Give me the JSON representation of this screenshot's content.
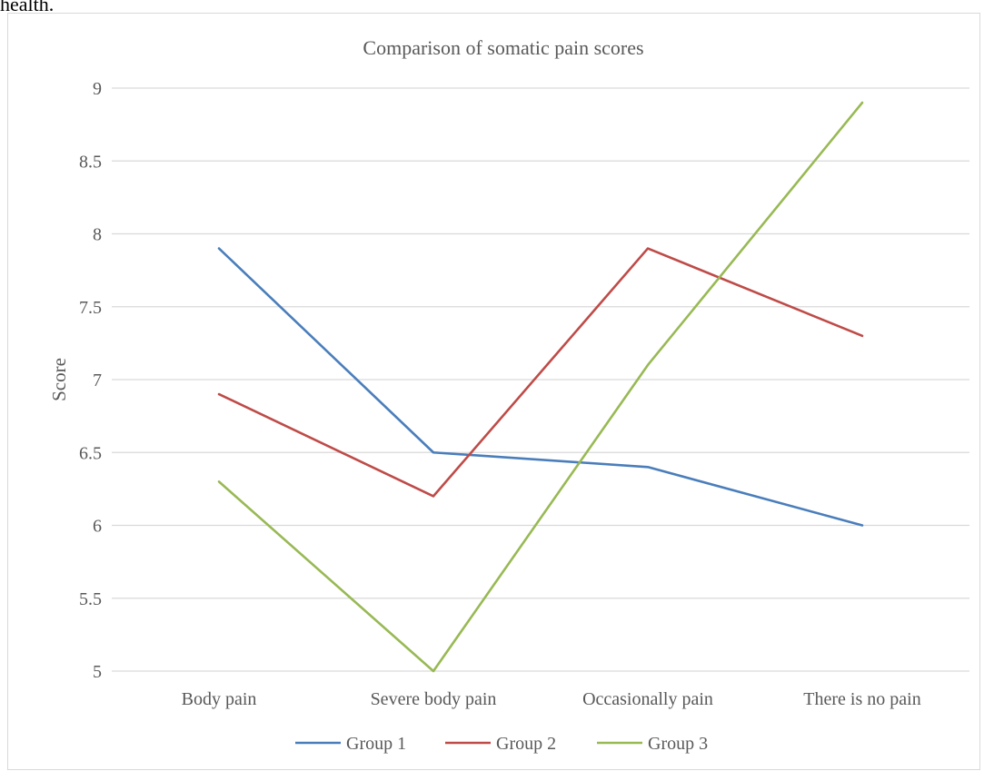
{
  "page": {
    "top_text": "health."
  },
  "chart_data": {
    "type": "line",
    "title": "Comparison of somatic pain scores",
    "xlabel": "",
    "ylabel": "Score",
    "categories": [
      "Body pain",
      "Severe body pain",
      "Occasionally pain",
      "There is no pain"
    ],
    "ylim": [
      5,
      9
    ],
    "yticks": [
      5,
      5.5,
      6,
      6.5,
      7,
      7.5,
      8,
      8.5,
      9
    ],
    "ytick_labels": [
      "5",
      "5.5",
      "6",
      "6.5",
      "7",
      "7.5",
      "8",
      "8.5",
      "9"
    ],
    "grid": true,
    "legend_position": "bottom",
    "series": [
      {
        "name": "Group 1",
        "color": "#4a7ebb",
        "values": [
          7.9,
          6.5,
          6.4,
          6.0
        ]
      },
      {
        "name": "Group 2",
        "color": "#be4b48",
        "values": [
          6.9,
          6.2,
          7.9,
          7.3
        ]
      },
      {
        "name": "Group 3",
        "color": "#98b954",
        "values": [
          6.3,
          5.0,
          7.1,
          8.9
        ]
      }
    ]
  }
}
